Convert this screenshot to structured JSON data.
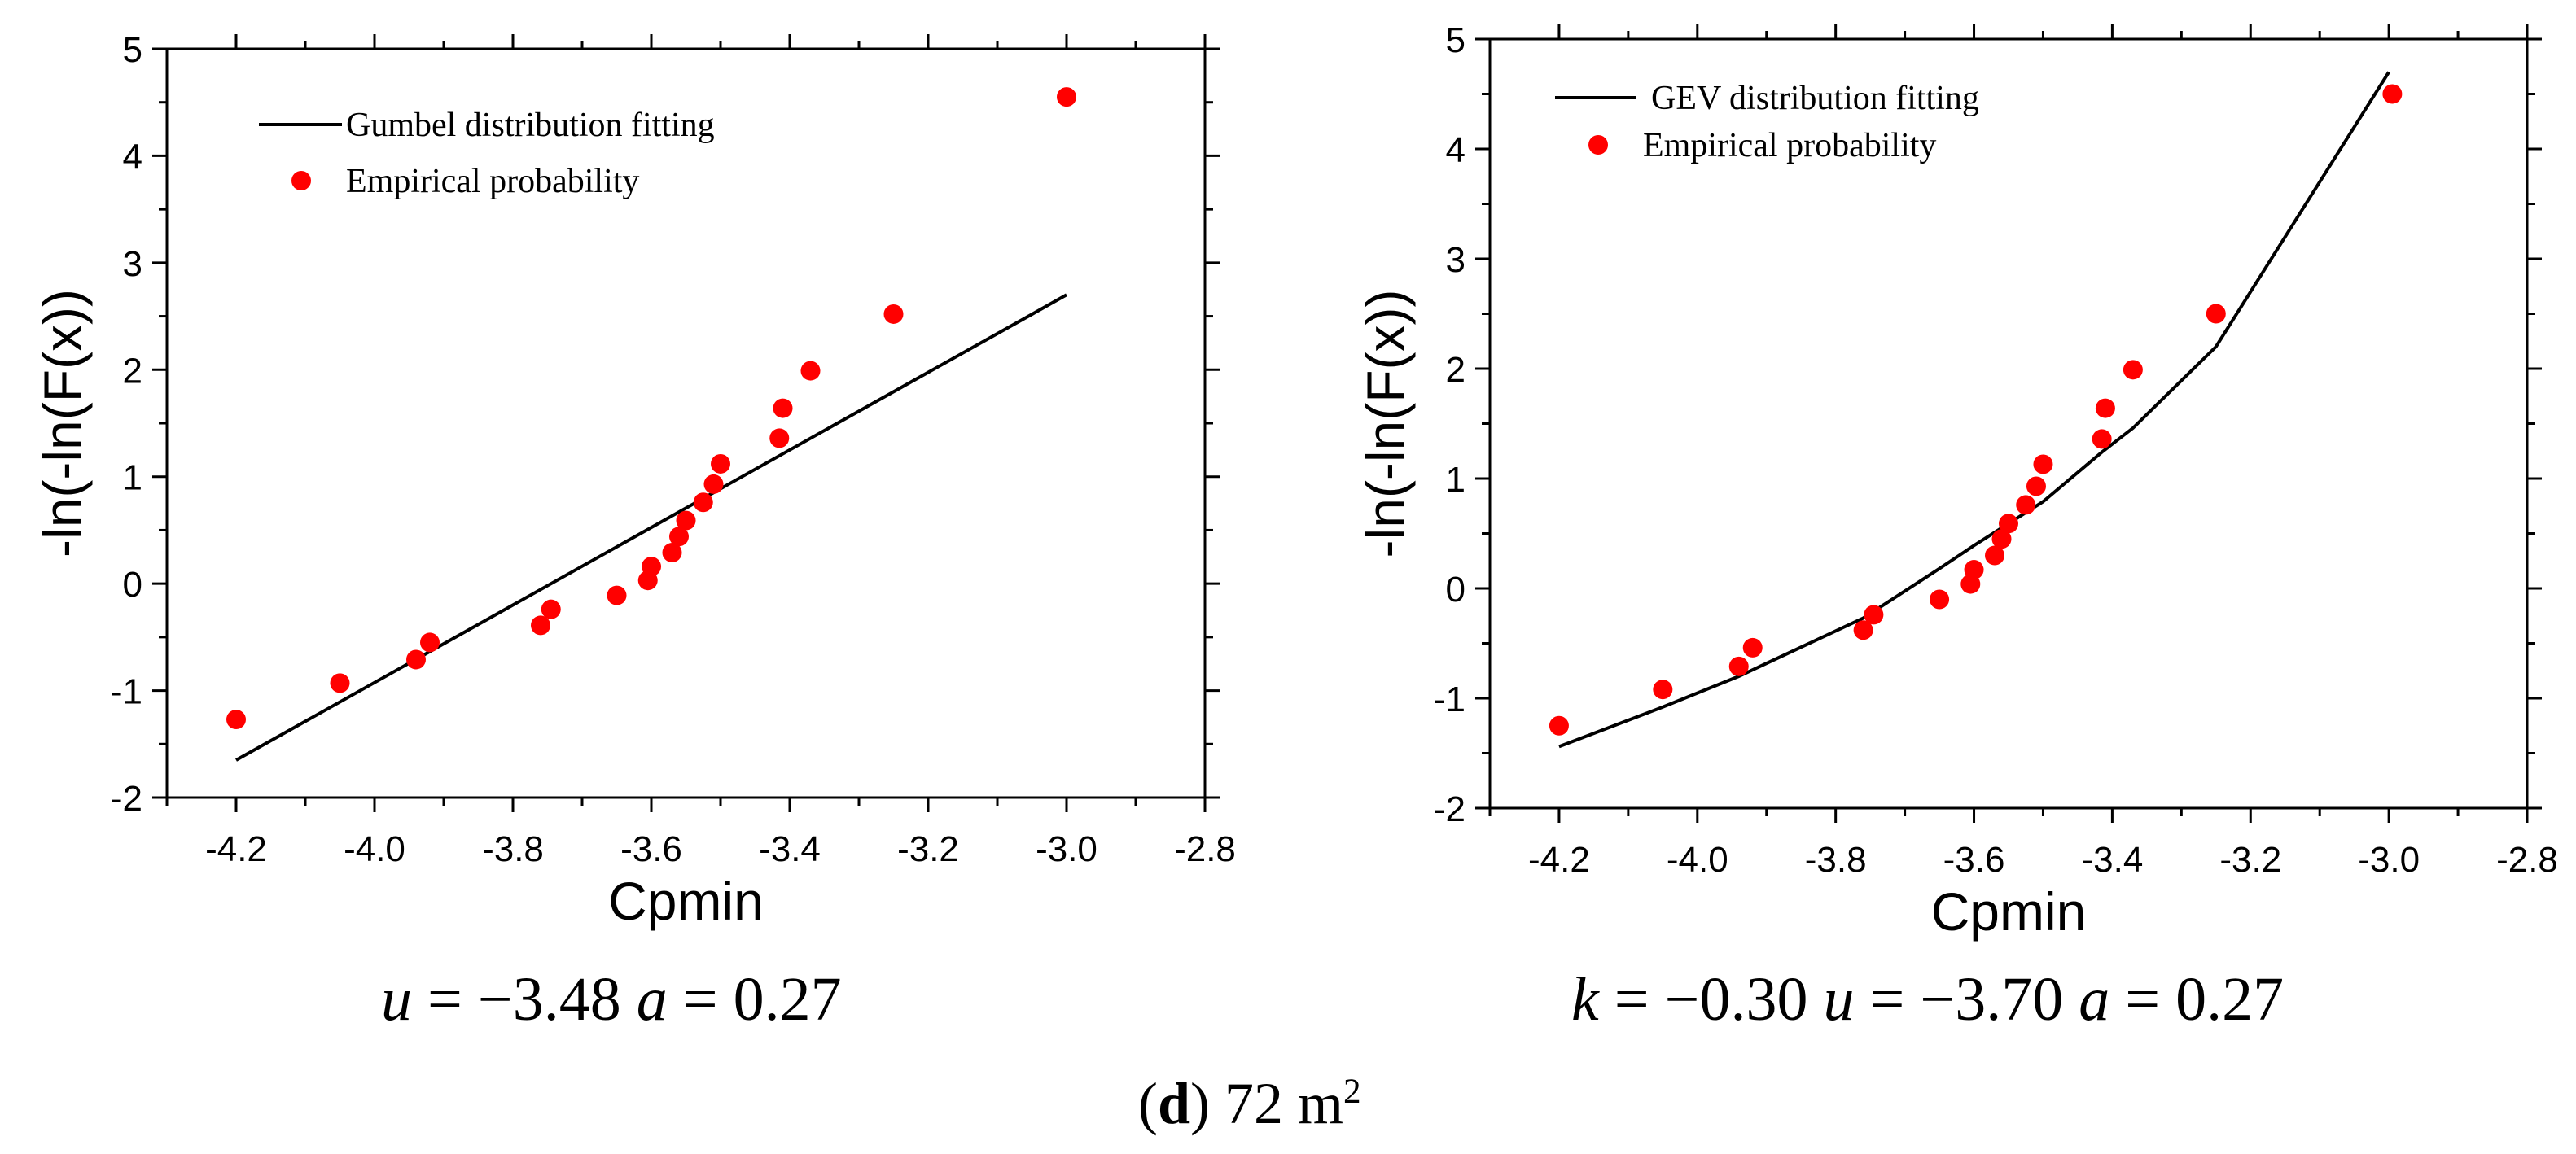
{
  "figure": {
    "panel_letter": "d",
    "panel_size_value": "72 m",
    "panel_size_exp": "2"
  },
  "chart_data": [
    {
      "id": "gumbel",
      "type": "scatter",
      "title": "",
      "xlabel": "Cpmin",
      "ylabel": "-ln(-ln(F(x))",
      "xlim": [
        -4.3,
        -2.8
      ],
      "ylim": [
        -2,
        5
      ],
      "xticks": [
        -4.2,
        -4.0,
        -3.8,
        -3.6,
        -3.4,
        -3.2,
        -3.0,
        -2.8
      ],
      "xtick_labels": [
        "-4.2",
        "-4.0",
        "-3.8",
        "-3.6",
        "-3.4",
        "-3.2",
        "-3.0",
        "-2.8"
      ],
      "yticks": [
        -2,
        -1,
        0,
        1,
        2,
        3,
        4,
        5
      ],
      "ytick_labels": [
        "-2",
        "-1",
        "0",
        "1",
        "2",
        "3",
        "4",
        "5"
      ],
      "legend_position": "top-left",
      "series": [
        {
          "name": "Gumbel distribution fitting",
          "kind": "line",
          "color": "#000000",
          "x": [
            -4.2,
            -3.0
          ],
          "y": [
            -1.65,
            2.7
          ]
        },
        {
          "name": "Empirical probability",
          "kind": "scatter",
          "color": "#ff0000",
          "x": [
            -4.2,
            -4.05,
            -3.94,
            -3.92,
            -3.76,
            -3.745,
            -3.65,
            -3.605,
            -3.6,
            -3.57,
            -3.56,
            -3.55,
            -3.525,
            -3.51,
            -3.5,
            -3.415,
            -3.41,
            -3.37,
            -3.25,
            -3.0
          ],
          "y": [
            -1.27,
            -0.93,
            -0.71,
            -0.55,
            -0.39,
            -0.24,
            -0.11,
            0.03,
            0.16,
            0.29,
            0.44,
            0.59,
            0.76,
            0.93,
            1.12,
            1.36,
            1.64,
            1.99,
            2.52,
            4.55
          ]
        }
      ],
      "caption": {
        "p1_name": "u",
        "p1_rest": " = −3.48 ",
        "p2_name": "a",
        "p2_rest": " = 0.27"
      }
    },
    {
      "id": "gev",
      "type": "scatter",
      "title": "",
      "xlabel": "Cpmin",
      "ylabel": "-ln(-ln(F(x))",
      "xlim": [
        -4.3,
        -2.8
      ],
      "ylim": [
        -2,
        5
      ],
      "xticks": [
        -4.2,
        -4.0,
        -3.8,
        -3.6,
        -3.4,
        -3.2,
        -3.0,
        -2.8
      ],
      "xtick_labels": [
        "-4.2",
        "-4.0",
        "-3.8",
        "-3.6",
        "-3.4",
        "-3.2",
        "-3.0",
        "-2.8"
      ],
      "yticks": [
        -2,
        -1,
        0,
        1,
        2,
        3,
        4,
        5
      ],
      "ytick_labels": [
        "-2",
        "-1",
        "0",
        "1",
        "2",
        "3",
        "4",
        "5"
      ],
      "legend_position": "top-left",
      "series": [
        {
          "name": "GEV distribution fitting",
          "kind": "line",
          "color": "#000000",
          "x": [
            -4.2,
            -4.05,
            -3.94,
            -3.76,
            -3.65,
            -3.6,
            -3.5,
            -3.415,
            -3.37,
            -3.25,
            -3.0
          ],
          "y": [
            -1.44,
            -1.08,
            -0.8,
            -0.27,
            0.18,
            0.39,
            0.79,
            1.24,
            1.46,
            2.2,
            4.7
          ]
        },
        {
          "name": "Empirical probability",
          "kind": "scatter",
          "color": "#ff0000",
          "x": [
            -4.2,
            -4.05,
            -3.94,
            -3.92,
            -3.76,
            -3.745,
            -3.65,
            -3.605,
            -3.6,
            -3.57,
            -3.56,
            -3.55,
            -3.525,
            -3.51,
            -3.5,
            -3.415,
            -3.41,
            -3.37,
            -3.25,
            -2.995
          ],
          "y": [
            -1.25,
            -0.92,
            -0.71,
            -0.54,
            -0.38,
            -0.24,
            -0.1,
            0.04,
            0.17,
            0.3,
            0.45,
            0.59,
            0.76,
            0.93,
            1.13,
            1.36,
            1.64,
            1.99,
            2.5,
            4.5
          ]
        }
      ],
      "caption": {
        "p0_name": "k",
        "p0_rest": " = −0.30 ",
        "p1_name": "u",
        "p1_rest": " = −3.70 ",
        "p2_name": "a",
        "p2_rest": " = 0.27"
      }
    }
  ]
}
